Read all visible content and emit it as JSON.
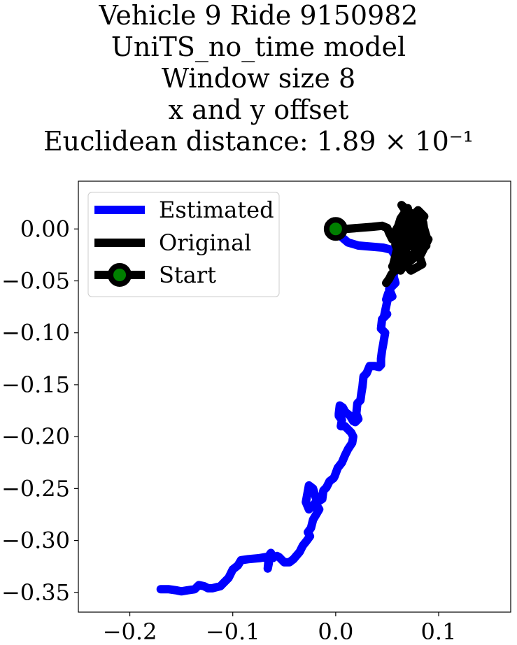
{
  "chart_data": {
    "type": "line",
    "title_lines": [
      "Vehicle 9 Ride 9150982",
      "UniTS_no_time model",
      "Window size 8",
      "x and y offset",
      "Euclidean distance: 1.89 × 10⁻¹"
    ],
    "xlabel": "",
    "ylabel": "",
    "xlim": [
      -0.25,
      0.17
    ],
    "ylim": [
      -0.369,
      0.046
    ],
    "xticks": [
      -0.2,
      -0.1,
      0.0,
      0.1
    ],
    "xtick_labels": [
      "−0.2",
      "−0.1",
      "0.0",
      "0.1"
    ],
    "yticks": [
      0.0,
      -0.05,
      -0.1,
      -0.15,
      -0.2,
      -0.25,
      -0.3,
      -0.35
    ],
    "ytick_labels": [
      "0.00",
      "−0.05",
      "−0.10",
      "−0.15",
      "−0.20",
      "−0.25",
      "−0.30",
      "−0.35"
    ],
    "grid": false,
    "legend_position": "upper-left",
    "legend": [
      "Estimated",
      "Original",
      "Start"
    ],
    "series": [
      {
        "name": "Estimated",
        "color": "#0000ff",
        "x": [
          0.0,
          0.006,
          0.012,
          0.022,
          0.034,
          0.046,
          0.054,
          0.058,
          0.06,
          0.056,
          0.058,
          0.052,
          0.055,
          0.049,
          0.051,
          0.05,
          0.047,
          0.05,
          0.045,
          0.044,
          0.048,
          0.046,
          0.045,
          0.044,
          0.044,
          0.042,
          0.038,
          0.033,
          0.03,
          0.027,
          0.026,
          0.025,
          0.024,
          0.021,
          0.02,
          0.022,
          0.019,
          0.017,
          0.014,
          0.009,
          0.007,
          0.004,
          0.003,
          0.003,
          0.006,
          0.005,
          0.009,
          0.012,
          0.015,
          0.017,
          0.016,
          0.012,
          0.009,
          0.006,
          0.002,
          -0.001,
          -0.002,
          -0.006,
          -0.009,
          -0.012,
          -0.013,
          -0.016,
          -0.019,
          -0.022,
          -0.026,
          -0.029,
          -0.026,
          -0.02,
          -0.016,
          -0.019,
          -0.022,
          -0.024,
          -0.027,
          -0.025,
          -0.028,
          -0.032,
          -0.035,
          -0.041,
          -0.045,
          -0.05,
          -0.055,
          -0.057,
          -0.06,
          -0.061,
          -0.063,
          -0.065,
          -0.067,
          -0.065,
          -0.066,
          -0.065,
          -0.068,
          -0.074,
          -0.085,
          -0.092,
          -0.095,
          -0.1,
          -0.104,
          -0.109,
          -0.112,
          -0.116,
          -0.12,
          -0.124,
          -0.128,
          -0.133,
          -0.137,
          -0.144,
          -0.15,
          -0.155,
          -0.162,
          -0.17
        ],
        "y": [
          0.0,
          -0.008,
          -0.013,
          -0.016,
          -0.017,
          -0.018,
          -0.02,
          -0.026,
          -0.033,
          -0.045,
          -0.052,
          -0.058,
          -0.065,
          -0.068,
          -0.062,
          -0.07,
          -0.084,
          -0.082,
          -0.087,
          -0.096,
          -0.1,
          -0.112,
          -0.117,
          -0.125,
          -0.131,
          -0.133,
          -0.132,
          -0.132,
          -0.139,
          -0.142,
          -0.152,
          -0.158,
          -0.165,
          -0.168,
          -0.178,
          -0.183,
          -0.186,
          -0.185,
          -0.18,
          -0.176,
          -0.172,
          -0.17,
          -0.178,
          -0.18,
          -0.184,
          -0.19,
          -0.19,
          -0.193,
          -0.196,
          -0.2,
          -0.206,
          -0.212,
          -0.218,
          -0.225,
          -0.23,
          -0.238,
          -0.24,
          -0.243,
          -0.249,
          -0.252,
          -0.26,
          -0.262,
          -0.26,
          -0.25,
          -0.247,
          -0.263,
          -0.27,
          -0.264,
          -0.27,
          -0.275,
          -0.28,
          -0.288,
          -0.292,
          -0.296,
          -0.3,
          -0.305,
          -0.311,
          -0.318,
          -0.321,
          -0.321,
          -0.316,
          -0.315,
          -0.316,
          -0.317,
          -0.312,
          -0.315,
          -0.316,
          -0.322,
          -0.327,
          -0.317,
          -0.316,
          -0.317,
          -0.318,
          -0.319,
          -0.324,
          -0.328,
          -0.336,
          -0.341,
          -0.344,
          -0.345,
          -0.346,
          -0.346,
          -0.344,
          -0.343,
          -0.347,
          -0.348,
          -0.349,
          -0.348,
          -0.347,
          -0.347
        ]
      },
      {
        "name": "Original",
        "color": "#000000",
        "x": [
          0.0,
          0.01,
          0.022,
          0.035,
          0.045,
          0.05,
          0.052,
          0.055,
          0.058,
          0.062,
          0.06,
          0.064,
          0.058,
          0.063,
          0.07,
          0.066,
          0.072,
          0.06,
          0.058,
          0.075,
          0.08,
          0.068,
          0.065,
          0.078,
          0.083,
          0.07,
          0.064,
          0.072,
          0.086,
          0.089,
          0.077,
          0.065,
          0.06,
          0.068,
          0.082,
          0.087,
          0.079,
          0.067,
          0.063,
          0.074,
          0.085,
          0.088,
          0.076,
          0.066,
          0.062,
          0.069,
          0.081,
          0.09,
          0.083,
          0.071,
          0.067,
          0.077,
          0.086,
          0.08,
          0.07,
          0.066,
          0.079,
          0.084,
          0.073,
          0.063,
          0.058,
          0.066,
          0.078,
          0.069,
          0.059,
          0.056,
          0.063,
          0.07,
          0.062,
          0.056,
          0.058,
          0.064,
          0.06,
          0.055,
          0.057,
          0.054,
          0.052,
          0.049
        ],
        "y": [
          0.0,
          0.0,
          0.001,
          0.002,
          0.003,
          0.001,
          -0.004,
          -0.01,
          -0.002,
          0.005,
          -0.008,
          -0.015,
          -0.006,
          0.01,
          0.02,
          0.012,
          0.004,
          -0.018,
          -0.026,
          -0.012,
          0.006,
          0.018,
          0.005,
          -0.015,
          -0.008,
          0.014,
          0.023,
          0.016,
          0.0,
          -0.01,
          -0.025,
          -0.034,
          -0.02,
          0.008,
          0.014,
          -0.006,
          -0.022,
          -0.03,
          -0.012,
          0.01,
          0.006,
          -0.016,
          -0.028,
          -0.036,
          -0.02,
          0.004,
          0.0,
          -0.01,
          -0.024,
          -0.03,
          -0.018,
          0.002,
          0.012,
          0.018,
          0.008,
          -0.012,
          -0.02,
          -0.034,
          -0.04,
          -0.028,
          -0.015,
          0.004,
          0.012,
          0.0,
          -0.022,
          -0.034,
          -0.04,
          -0.03,
          -0.024,
          -0.036,
          -0.04,
          -0.032,
          -0.028,
          -0.036,
          -0.04,
          -0.044,
          -0.048,
          -0.052
        ]
      }
    ],
    "start_point": {
      "x": 0.0,
      "y": 0.0,
      "edge_color": "#000000",
      "face_color": "#008000"
    }
  }
}
